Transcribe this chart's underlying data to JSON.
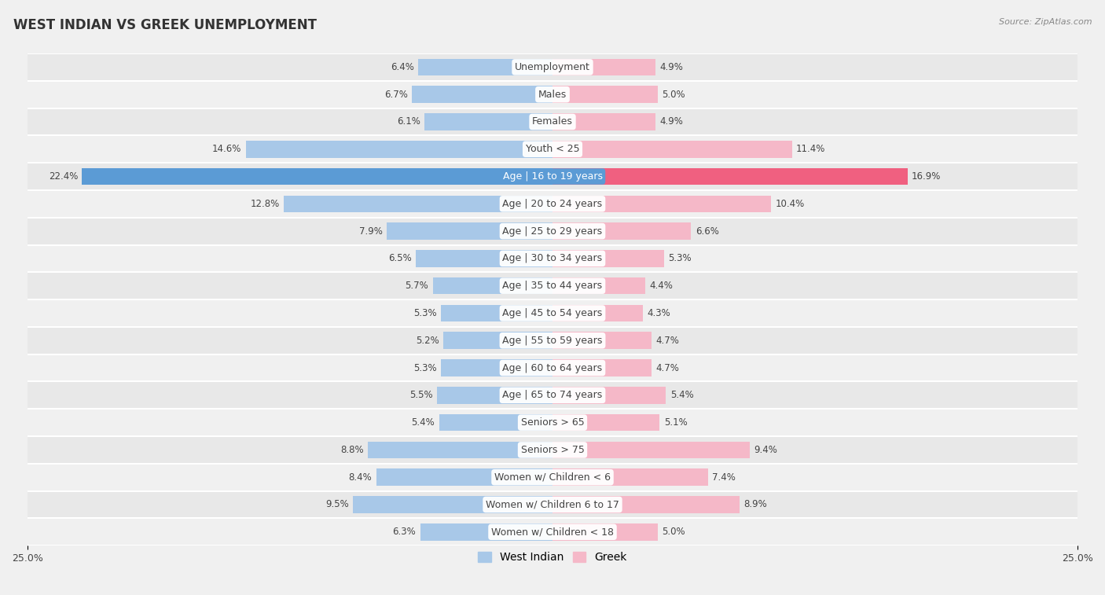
{
  "title": "WEST INDIAN VS GREEK UNEMPLOYMENT",
  "source": "Source: ZipAtlas.com",
  "categories": [
    "Unemployment",
    "Males",
    "Females",
    "Youth < 25",
    "Age | 16 to 19 years",
    "Age | 20 to 24 years",
    "Age | 25 to 29 years",
    "Age | 30 to 34 years",
    "Age | 35 to 44 years",
    "Age | 45 to 54 years",
    "Age | 55 to 59 years",
    "Age | 60 to 64 years",
    "Age | 65 to 74 years",
    "Seniors > 65",
    "Seniors > 75",
    "Women w/ Children < 6",
    "Women w/ Children 6 to 17",
    "Women w/ Children < 18"
  ],
  "west_indian": [
    6.4,
    6.7,
    6.1,
    14.6,
    22.4,
    12.8,
    7.9,
    6.5,
    5.7,
    5.3,
    5.2,
    5.3,
    5.5,
    5.4,
    8.8,
    8.4,
    9.5,
    6.3
  ],
  "greek": [
    4.9,
    5.0,
    4.9,
    11.4,
    16.9,
    10.4,
    6.6,
    5.3,
    4.4,
    4.3,
    4.7,
    4.7,
    5.4,
    5.1,
    9.4,
    7.4,
    8.9,
    5.0
  ],
  "west_indian_color": "#a8c8e8",
  "greek_color": "#f5b8c8",
  "west_indian_highlight_color": "#5b9bd5",
  "greek_highlight_color": "#f06080",
  "highlight_row": 4,
  "xlim": 25.0,
  "bar_height": 0.62,
  "bg_color": "#f0f0f0",
  "row_bg_color_even": "#e8e8e8",
  "row_bg_color_odd": "#f0f0f0",
  "label_color": "#444444",
  "title_fontsize": 12,
  "label_fontsize": 9,
  "value_fontsize": 8.5,
  "legend_fontsize": 10,
  "axis_label_fontsize": 9,
  "label_badge_color": "#ffffff",
  "highlight_label_color": "#ffffff"
}
